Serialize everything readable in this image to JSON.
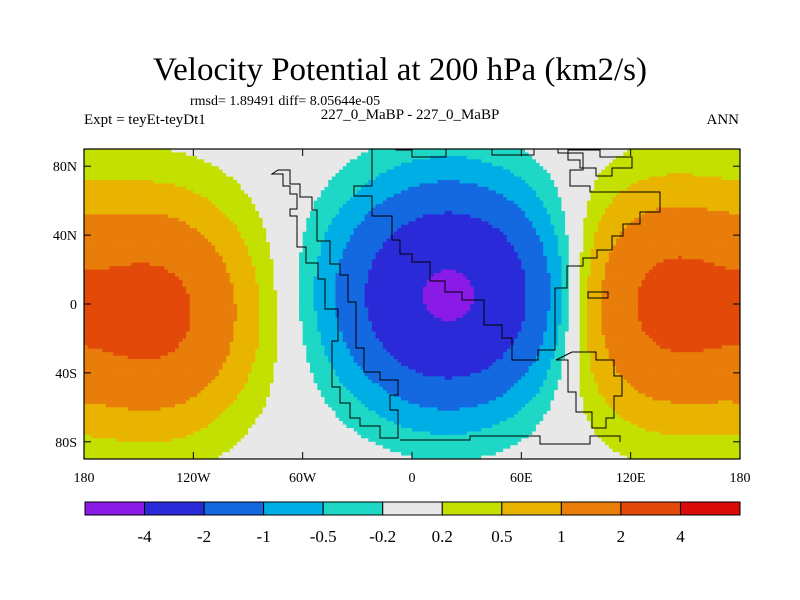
{
  "chart_data": {
    "type": "heatmap",
    "title": "Velocity Potential at 200 hPa (km2/s)",
    "stats_line": "rmsd= 1.89491 diff= 8.05644e-05",
    "left_label": "Expt = teyEt-teyDt1",
    "center_label": "227_0_MaBP - 227_0_MaBP",
    "right_label": "ANN",
    "x_axis": {
      "ticks": [
        -180,
        -120,
        -60,
        0,
        60,
        120,
        180
      ],
      "tick_labels": [
        "180",
        "120W",
        "60W",
        "0",
        "60E",
        "120E",
        "180"
      ]
    },
    "y_axis": {
      "ticks": [
        80,
        40,
        0,
        -40,
        -80
      ],
      "tick_labels": [
        "80N",
        "40N",
        "0",
        "40S",
        "80S"
      ],
      "range": [
        -90,
        90
      ]
    },
    "levels": [
      -4,
      -2,
      -1,
      -0.5,
      -0.2,
      0.2,
      0.5,
      1,
      2,
      4
    ],
    "level_labels": [
      "-4",
      "-2",
      "-1",
      "-0.5",
      "-0.2",
      "0.2",
      "0.5",
      "1",
      "2",
      "4"
    ],
    "colors": [
      "#8a1ae6",
      "#2a2ad8",
      "#1468e0",
      "#00aee6",
      "#1ed7c4",
      "#e8e8e8",
      "#c3e000",
      "#e8b400",
      "#e87d0a",
      "#e34a0a",
      "#d90a0a"
    ],
    "field": [
      {
        "name": "velocity potential minimum (convergence aloft)",
        "sign": -1,
        "lon": 20,
        "lat": 5,
        "value": -4.3
      },
      {
        "name": "velocity potential maximum (western hemisphere)",
        "sign": 1,
        "lon": -140,
        "lat": -5,
        "value": 2.3
      },
      {
        "name": "velocity potential maximum (eastern hemisphere)",
        "sign": 1,
        "lon": 140,
        "lat": 0,
        "value": 2.3
      }
    ]
  }
}
